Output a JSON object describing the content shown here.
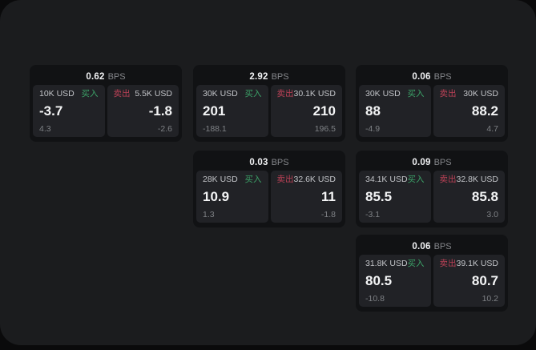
{
  "labels": {
    "bps": "BPS",
    "buy": "买入",
    "sell": "卖出"
  },
  "colors": {
    "page_bg": "#1b1c1e",
    "card_bg": "#111214",
    "tile_bg": "#212226",
    "buy_green": "#3ca268",
    "sell_red": "#bb4156"
  },
  "cards": [
    {
      "bps": "0.62",
      "buy": {
        "amount": "10K USD",
        "value": "-3.7",
        "sub": "4.3"
      },
      "sell": {
        "amount": "5.5K USD",
        "value": "-1.8",
        "sub": "-2.6"
      }
    },
    {
      "bps": "2.92",
      "buy": {
        "amount": "30K USD",
        "value": "201",
        "sub": "-188.1"
      },
      "sell": {
        "amount": "30.1K USD",
        "value": "210",
        "sub": "196.5"
      }
    },
    {
      "bps": "0.06",
      "buy": {
        "amount": "30K USD",
        "value": "88",
        "sub": "-4.9"
      },
      "sell": {
        "amount": "30K USD",
        "value": "88.2",
        "sub": "4.7"
      }
    },
    {
      "bps": "0.03",
      "buy": {
        "amount": "28K USD",
        "value": "10.9",
        "sub": "1.3"
      },
      "sell": {
        "amount": "32.6K USD",
        "value": "11",
        "sub": "-1.8"
      }
    },
    {
      "bps": "0.09",
      "buy": {
        "amount": "34.1K USD",
        "value": "85.5",
        "sub": "-3.1"
      },
      "sell": {
        "amount": "32.8K USD",
        "value": "85.8",
        "sub": "3.0"
      }
    },
    {
      "bps": "0.06",
      "buy": {
        "amount": "31.8K USD",
        "value": "80.5",
        "sub": "-10.8"
      },
      "sell": {
        "amount": "39.1K USD",
        "value": "80.7",
        "sub": "10.2"
      }
    }
  ]
}
